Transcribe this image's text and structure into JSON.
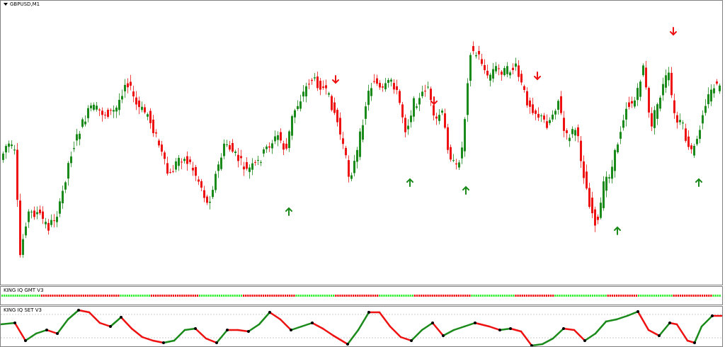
{
  "chart": {
    "symbol_title": "GBPUSD,M1",
    "bull_color": "#1a8a1a",
    "bear_color": "#ee1111",
    "arrow_up_color": "#1a8a1a",
    "arrow_down_color": "#ee1111",
    "arrow_up_icon": "arrow-up-icon",
    "arrow_down_icon": "arrow-down-icon"
  },
  "indicator_gmt": {
    "name": "KING IQ GMT V3",
    "bull_color": "#33ee33",
    "bear_color": "#ee1111",
    "state_runs": [
      [
        0,
        "g",
        18
      ],
      [
        18,
        "r",
        36
      ],
      [
        54,
        "g",
        14
      ],
      [
        68,
        "r",
        22
      ],
      [
        90,
        "g",
        20
      ],
      [
        110,
        "r",
        24
      ],
      [
        134,
        "g",
        18
      ],
      [
        152,
        "r",
        20
      ],
      [
        172,
        "g",
        16
      ],
      [
        188,
        "r",
        26
      ],
      [
        214,
        "g",
        20
      ],
      [
        234,
        "r",
        18
      ],
      [
        252,
        "g",
        24
      ],
      [
        276,
        "r",
        14
      ],
      [
        290,
        "g",
        16
      ],
      [
        306,
        "r",
        18
      ],
      [
        324,
        "g",
        28
      ]
    ]
  },
  "indicator_set": {
    "name": "KING IQ SET V3",
    "up_color": "#1a8a1a",
    "down_color": "#ee1111",
    "turn_color": "#000000"
  }
}
